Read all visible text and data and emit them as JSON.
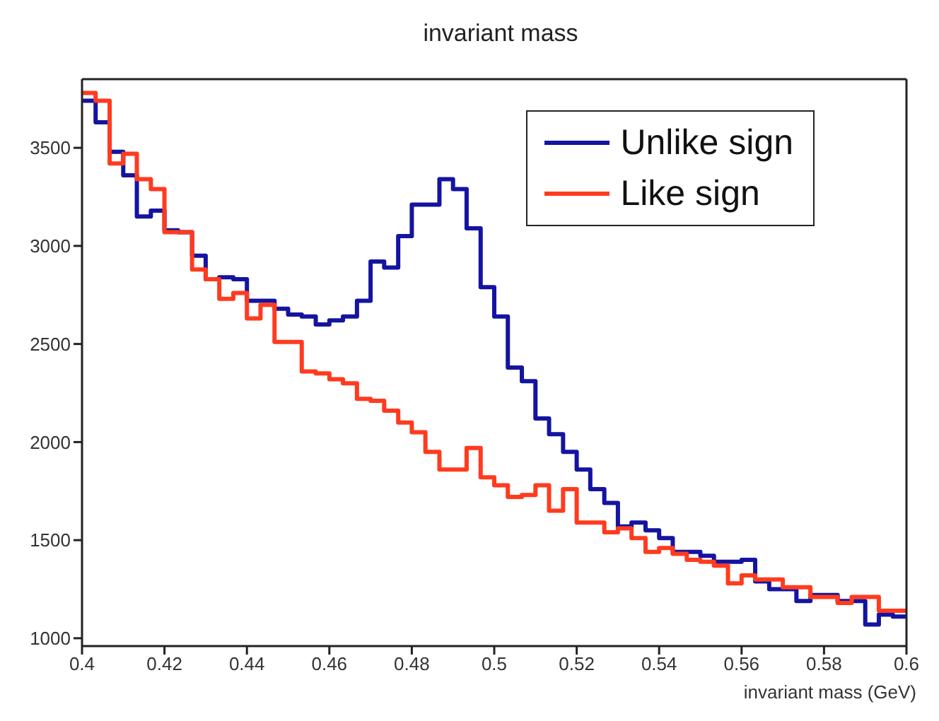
{
  "chart_data": {
    "type": "histogram",
    "title": "invariant mass",
    "xlabel": "invariant mass (GeV)",
    "bins": [
      0.4,
      0.4033,
      0.4067,
      0.41,
      0.4133,
      0.4167,
      0.42,
      0.4233,
      0.4267,
      0.43,
      0.4333,
      0.4367,
      0.44,
      0.4433,
      0.4467,
      0.45,
      0.4533,
      0.4567,
      0.46,
      0.4633,
      0.4667,
      0.47,
      0.4733,
      0.4767,
      0.48,
      0.4833,
      0.4867,
      0.49,
      0.4933,
      0.4967,
      0.5,
      0.5033,
      0.5067,
      0.51,
      0.5133,
      0.5167,
      0.52,
      0.5233,
      0.5267,
      0.53,
      0.5333,
      0.5367,
      0.54,
      0.5433,
      0.5467,
      0.55,
      0.5533,
      0.5567,
      0.56,
      0.5633,
      0.5667,
      0.57,
      0.5733,
      0.5767,
      0.58,
      0.5833,
      0.5867,
      0.59,
      0.5933,
      0.5967,
      0.6
    ],
    "series": [
      {
        "name": "Unlike sign",
        "color": "#1414a0",
        "values": [
          3740,
          3630,
          3480,
          3360,
          3150,
          3180,
          3080,
          3070,
          2950,
          2830,
          2840,
          2830,
          2720,
          2720,
          2680,
          2650,
          2640,
          2600,
          2620,
          2640,
          2720,
          2920,
          2890,
          3050,
          3210,
          3210,
          3340,
          3290,
          3090,
          2790,
          2640,
          2380,
          2310,
          2120,
          2040,
          1950,
          1860,
          1760,
          1690,
          1570,
          1590,
          1550,
          1510,
          1440,
          1440,
          1420,
          1390,
          1390,
          1400,
          1290,
          1250,
          1250,
          1190,
          1220,
          1220,
          1190,
          1190,
          1070,
          1120,
          1110
        ]
      },
      {
        "name": "Like sign",
        "color": "#ff3b1f",
        "values": [
          3780,
          3740,
          3420,
          3470,
          3340,
          3290,
          3070,
          3070,
          2880,
          2830,
          2730,
          2760,
          2630,
          2700,
          2510,
          2510,
          2360,
          2350,
          2320,
          2300,
          2220,
          2210,
          2160,
          2100,
          2050,
          1950,
          1860,
          1860,
          1970,
          1820,
          1780,
          1720,
          1730,
          1780,
          1650,
          1760,
          1590,
          1590,
          1540,
          1560,
          1510,
          1440,
          1460,
          1430,
          1400,
          1390,
          1370,
          1280,
          1320,
          1300,
          1300,
          1260,
          1260,
          1210,
          1210,
          1180,
          1210,
          1210,
          1140,
          1140
        ]
      }
    ],
    "xlim": [
      0.4,
      0.6
    ],
    "xticks": [
      0.4,
      0.42,
      0.44,
      0.46,
      0.48,
      0.5,
      0.52,
      0.54,
      0.56,
      0.58,
      0.6
    ],
    "ylim": [
      960,
      3850
    ],
    "yticks": [
      1000,
      1500,
      2000,
      2500,
      3000,
      3500
    ],
    "legend": "top right"
  }
}
